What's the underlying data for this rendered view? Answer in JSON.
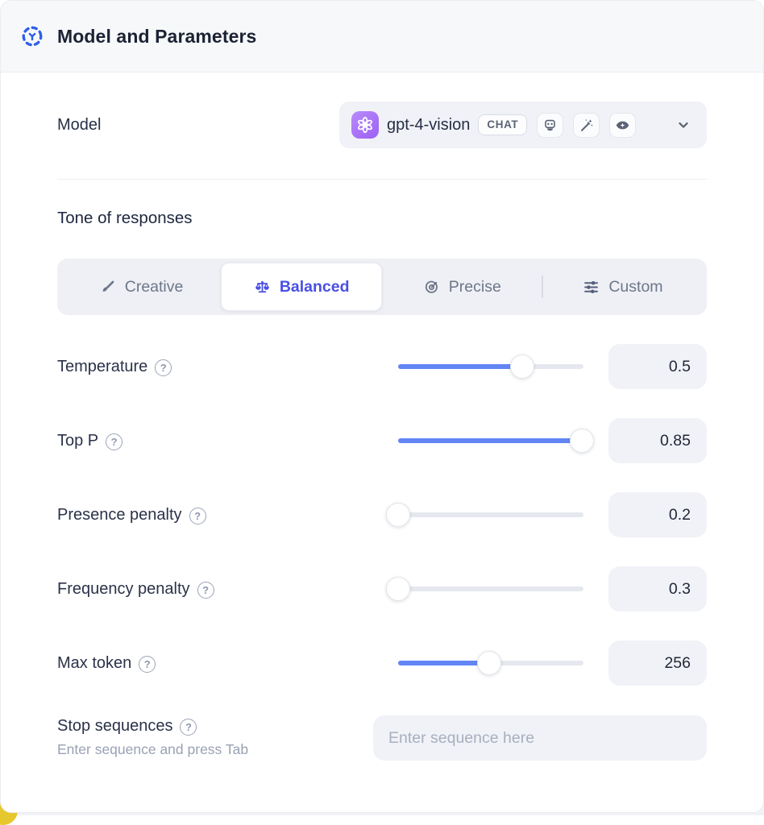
{
  "header": {
    "title": "Model and Parameters",
    "icon": "ai-agent-icon"
  },
  "model": {
    "label": "Model",
    "selected_model": "gpt-4-vision",
    "provider_icon": "openai-logo-icon",
    "type_badge": "CHAT",
    "capability_icons": [
      "robot-icon",
      "magic-wand-icon",
      "vision-eye-icon"
    ],
    "dropdown_icon": "chevron-down-icon"
  },
  "tone": {
    "heading": "Tone of responses",
    "options": [
      {
        "label": "Creative",
        "icon": "paintbrush-icon",
        "selected": false
      },
      {
        "label": "Balanced",
        "icon": "balance-scale-icon",
        "selected": true
      },
      {
        "label": "Precise",
        "icon": "target-icon",
        "selected": false
      },
      {
        "label": "Custom",
        "icon": "sliders-icon",
        "selected": false
      }
    ]
  },
  "parameters": [
    {
      "label": "Temperature",
      "value": "0.5",
      "fill_pct": 67
    },
    {
      "label": "Top P",
      "value": "0.85",
      "fill_pct": 99
    },
    {
      "label": "Presence penalty",
      "value": "0.2",
      "fill_pct": 0
    },
    {
      "label": "Frequency penalty",
      "value": "0.3",
      "fill_pct": 0
    },
    {
      "label": "Max token",
      "value": "256",
      "fill_pct": 49
    }
  ],
  "stop_sequences": {
    "label": "Stop sequences",
    "hint": "Enter sequence and press Tab",
    "placeholder": "Enter sequence here"
  },
  "icons": {
    "help_glyph": "?"
  },
  "colors": {
    "accent_blue": "#2f5eea",
    "selected_indigo": "#4a4fe4",
    "slider_blue": "#6386f6",
    "openai_purple": "#9c5ff5",
    "corner_yellow": "#e6c72e",
    "panel_gray": "#f1f2f7"
  }
}
